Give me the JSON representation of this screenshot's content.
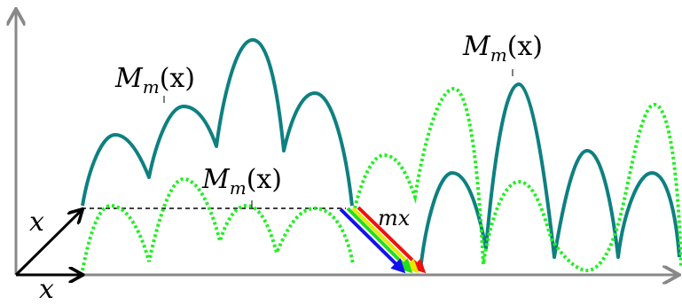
{
  "labels": {
    "m_left": {
      "name": "M",
      "sub": "m",
      "arg": "(x)"
    },
    "m_right": {
      "name": "M",
      "sub": "m",
      "arg": "(x)"
    },
    "m_middle": {
      "name": "M",
      "sub": "m",
      "arg": "(x)"
    },
    "x_vertical": "x",
    "x_horizontal": "x",
    "mx": "mx"
  },
  "colors": {
    "axis": "#888888",
    "teal_curve": "#0e8080",
    "green_dotted": "#22ee22",
    "black": "#000000",
    "arrow_red": "#ee1111",
    "arrow_yellow": "#e8e800",
    "arrow_green": "#22dd22",
    "arrow_blue": "#1111ee"
  },
  "icons": {
    "x_axis_arrow": "arrow-right-icon",
    "y_axis_arrow": "arrow-up-icon"
  }
}
